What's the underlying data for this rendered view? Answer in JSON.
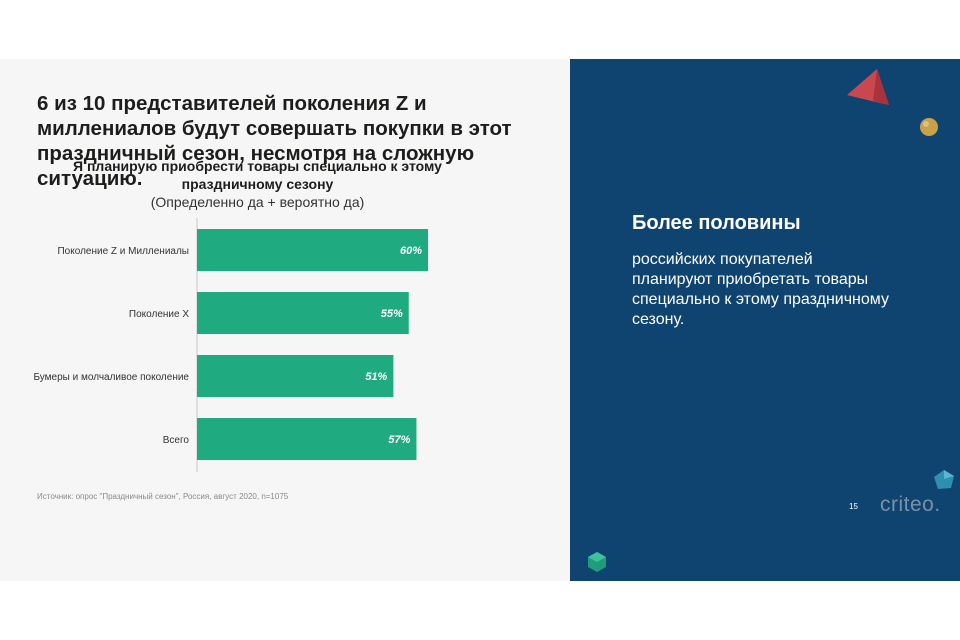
{
  "headline": "6 из 10 представителей поколения Z и миллениалов будут совершать покупки в этот праздничный сезон, несмотря на сложную ситуацию.",
  "source": "Источник: опрос \"Праздничный сезон\", Россия, август 2020, n=1075",
  "callout": {
    "title": "Более половины",
    "body": "российских покупателей планируют приобретать товары специально к этому праздничному сезону."
  },
  "page_number": "15",
  "logo_text": "criteo.",
  "colors": {
    "bar": "#1faa7f",
    "panel": "#0f4470",
    "background": "#f6f6f6"
  },
  "chart_data": {
    "type": "bar",
    "orientation": "horizontal",
    "title": "Я планирую приобрести товары специально к этому праздничному сезону",
    "subtitle": "(Определенно да + вероятно да)",
    "categories": [
      "Поколение Z и Миллениалы",
      "Поколение X",
      "Бумеры и молчаливое поколение",
      "Всего"
    ],
    "values": [
      60,
      55,
      51,
      57
    ],
    "value_labels": [
      "60%",
      "55%",
      "51%",
      "57%"
    ],
    "xlim": [
      0,
      100
    ],
    "grid": false,
    "legend": "none"
  }
}
